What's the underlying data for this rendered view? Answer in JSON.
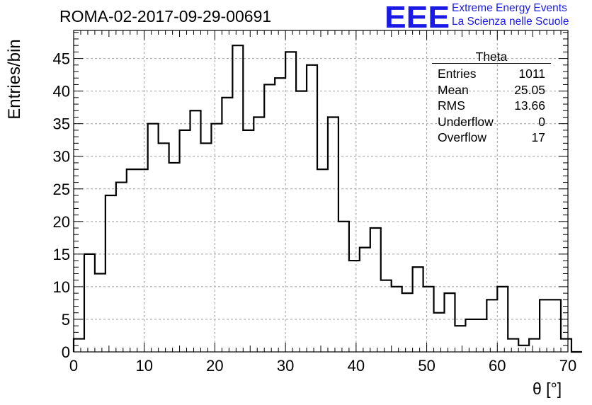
{
  "run_title": "ROMA-02-2017-09-29-00691",
  "logo": {
    "mark": "EEE",
    "line1": "Extreme Energy Events",
    "line2": "La Scienza nelle Scuole",
    "color": "#1a1ae6"
  },
  "stats_box": {
    "title": "Theta",
    "rows": [
      {
        "label": "Entries",
        "value": "1011"
      },
      {
        "label": "Mean",
        "value": "25.05"
      },
      {
        "label": "RMS",
        "value": "13.66"
      },
      {
        "label": "Underflow",
        "value": "0"
      },
      {
        "label": "Overflow",
        "value": "17"
      }
    ]
  },
  "chart_data": {
    "type": "bar",
    "histogram": true,
    "title": "ROMA-02-2017-09-29-00691",
    "xlabel": "θ [°]",
    "ylabel": "Entries/bin",
    "xlim": [
      0,
      70
    ],
    "ylim": [
      0,
      49.3
    ],
    "grid": true,
    "bin_width": 1.5,
    "bin_edges_start": 0,
    "xticks": [
      0,
      10,
      20,
      30,
      40,
      50,
      60,
      70
    ],
    "yticks": [
      0,
      5,
      10,
      15,
      20,
      25,
      30,
      35,
      40,
      45
    ],
    "values": [
      2,
      15,
      12,
      24,
      26,
      28,
      28,
      35,
      32,
      29,
      34,
      37,
      32,
      35,
      39,
      47,
      34,
      36,
      41,
      42,
      46,
      40,
      44,
      28,
      36,
      20,
      14,
      16,
      19,
      11,
      10,
      9,
      13,
      10,
      6,
      9,
      4,
      5,
      5,
      8,
      10,
      2,
      1,
      2,
      8,
      8,
      2,
      0
    ]
  }
}
